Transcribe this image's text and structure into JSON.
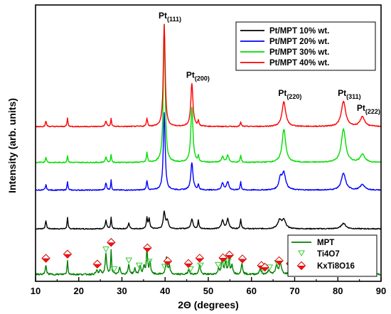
{
  "chart_data": {
    "type": "line",
    "title": "",
    "xlabel": "2Θ (degrees)",
    "ylabel": "Intensity (arb. units)",
    "xlim": [
      10,
      90
    ],
    "xticks": [
      "10",
      "20",
      "30",
      "40",
      "50",
      "60",
      "70",
      "80",
      "90"
    ],
    "grid": false,
    "legend_top": {
      "position": "top-right",
      "entries": [
        "Pt/MPT 10% wt.",
        "Pt/MPT 20% wt.",
        "Pt/MPT 30% wt.",
        "Pt/MPT 40% wt."
      ]
    },
    "legend_bottom": {
      "position": "bottom-right",
      "entries": [
        "MPT",
        "Ti4O7",
        "KxTi8O16"
      ]
    },
    "peak_labels": [
      {
        "base": "Pt",
        "sub": "(111)",
        "x": 39.8
      },
      {
        "base": "Pt",
        "sub": "(200)",
        "x": 46.2
      },
      {
        "base": "Pt",
        "sub": "(220)",
        "x": 67.5
      },
      {
        "base": "Pt",
        "sub": "(311)",
        "x": 81.3
      },
      {
        "base": "Pt",
        "sub": "(222)",
        "x": 85.7
      }
    ],
    "series": [
      {
        "name": "Pt/MPT 10% wt.",
        "color": "#000000",
        "baseline": 0.19,
        "peaks": [
          [
            12.4,
            0.03,
            0.15
          ],
          [
            17.4,
            0.04,
            0.12
          ],
          [
            26.3,
            0.03,
            0.2
          ],
          [
            27.5,
            0.04,
            0.12
          ],
          [
            31.6,
            0.02,
            0.2
          ],
          [
            35.8,
            0.04,
            0.15
          ],
          [
            36.3,
            0.035,
            0.2
          ],
          [
            39.8,
            0.06,
            0.25
          ],
          [
            40.5,
            0.03,
            0.3
          ],
          [
            46.2,
            0.035,
            0.3
          ],
          [
            47.7,
            0.03,
            0.15
          ],
          [
            53.3,
            0.03,
            0.3
          ],
          [
            54.5,
            0.035,
            0.3
          ],
          [
            57.5,
            0.035,
            0.15
          ],
          [
            66.5,
            0.03,
            0.5
          ],
          [
            67.5,
            0.03,
            0.5
          ],
          [
            81.3,
            0.02,
            0.6
          ]
        ]
      },
      {
        "name": "Pt/MPT 20% wt.",
        "color": "#0000ff",
        "baseline": 0.33,
        "peaks": [
          [
            12.4,
            0.02,
            0.15
          ],
          [
            17.4,
            0.03,
            0.12
          ],
          [
            26.3,
            0.025,
            0.2
          ],
          [
            27.5,
            0.035,
            0.12
          ],
          [
            35.8,
            0.035,
            0.15
          ],
          [
            39.8,
            0.28,
            0.25
          ],
          [
            46.2,
            0.1,
            0.3
          ],
          [
            47.7,
            0.02,
            0.15
          ],
          [
            53.3,
            0.025,
            0.3
          ],
          [
            54.5,
            0.03,
            0.3
          ],
          [
            57.5,
            0.03,
            0.15
          ],
          [
            66.7,
            0.04,
            0.4
          ],
          [
            67.5,
            0.06,
            0.5
          ],
          [
            81.3,
            0.06,
            0.6
          ],
          [
            85.7,
            0.02,
            0.6
          ]
        ]
      },
      {
        "name": "Pt/MPT 30% wt.",
        "color": "#00dd00",
        "baseline": 0.43,
        "peaks": [
          [
            12.4,
            0.02,
            0.15
          ],
          [
            17.4,
            0.025,
            0.12
          ],
          [
            26.3,
            0.02,
            0.2
          ],
          [
            27.5,
            0.03,
            0.12
          ],
          [
            35.8,
            0.035,
            0.15
          ],
          [
            39.8,
            0.5,
            0.25
          ],
          [
            46.2,
            0.2,
            0.3
          ],
          [
            47.7,
            0.02,
            0.15
          ],
          [
            53.3,
            0.02,
            0.3
          ],
          [
            54.5,
            0.025,
            0.3
          ],
          [
            57.5,
            0.025,
            0.15
          ],
          [
            67.5,
            0.12,
            0.5
          ],
          [
            81.3,
            0.12,
            0.6
          ],
          [
            85.7,
            0.03,
            0.6
          ]
        ]
      },
      {
        "name": "Pt/MPT 40% wt.",
        "color": "#ff0000",
        "baseline": 0.56,
        "peaks": [
          [
            12.4,
            0.02,
            0.15
          ],
          [
            17.4,
            0.03,
            0.12
          ],
          [
            26.3,
            0.02,
            0.2
          ],
          [
            27.5,
            0.03,
            0.12
          ],
          [
            35.8,
            0.03,
            0.15
          ],
          [
            39.8,
            0.37,
            0.25
          ],
          [
            46.2,
            0.155,
            0.3
          ],
          [
            47.7,
            0.02,
            0.15
          ],
          [
            57.5,
            0.015,
            0.15
          ],
          [
            67.5,
            0.09,
            0.5
          ],
          [
            81.3,
            0.09,
            0.6
          ],
          [
            85.7,
            0.035,
            0.6
          ]
        ]
      },
      {
        "name": "MPT",
        "color": "#008000",
        "baseline": 0.025,
        "peaks": [
          [
            12.4,
            0.035,
            0.15
          ],
          [
            17.4,
            0.05,
            0.12
          ],
          [
            24.2,
            0.015,
            0.2
          ],
          [
            25.0,
            0.015,
            0.2
          ],
          [
            26.3,
            0.075,
            0.2
          ],
          [
            27.5,
            0.09,
            0.12
          ],
          [
            29.5,
            0.025,
            0.2
          ],
          [
            31.6,
            0.035,
            0.2
          ],
          [
            33.0,
            0.02,
            0.2
          ],
          [
            34.2,
            0.03,
            0.2
          ],
          [
            35.1,
            0.03,
            0.2
          ],
          [
            35.8,
            0.095,
            0.15
          ],
          [
            36.5,
            0.045,
            0.2
          ],
          [
            40.3,
            0.06,
            0.2
          ],
          [
            41.0,
            0.03,
            0.2
          ],
          [
            45.5,
            0.02,
            0.2
          ],
          [
            48.0,
            0.035,
            0.2
          ],
          [
            52.4,
            0.02,
            0.2
          ],
          [
            53.2,
            0.06,
            0.2
          ],
          [
            54.0,
            0.045,
            0.2
          ],
          [
            54.8,
            0.05,
            0.2
          ],
          [
            55.5,
            0.035,
            0.2
          ],
          [
            57.8,
            0.04,
            0.2
          ],
          [
            62.0,
            0.02,
            0.25
          ],
          [
            64.0,
            0.015,
            0.25
          ],
          [
            65.8,
            0.03,
            0.3
          ],
          [
            66.7,
            0.04,
            0.3
          ],
          [
            69.0,
            0.015,
            0.3
          ]
        ]
      }
    ],
    "markers": {
      "Ti4O7": [
        26.3,
        28.2,
        31.6,
        34.0,
        36.3,
        39.9,
        45.9,
        48.2,
        52.3,
        53.7,
        54.6,
        62.5,
        64.2,
        66.0,
        69.3,
        71.2,
        82.0
      ],
      "KxTi8O16": [
        12.4,
        17.4,
        24.3,
        27.5,
        35.9,
        40.6,
        45.4,
        48.0,
        53.4,
        54.9,
        57.9,
        62.3,
        63.1,
        66.4,
        69.0
      ]
    }
  }
}
